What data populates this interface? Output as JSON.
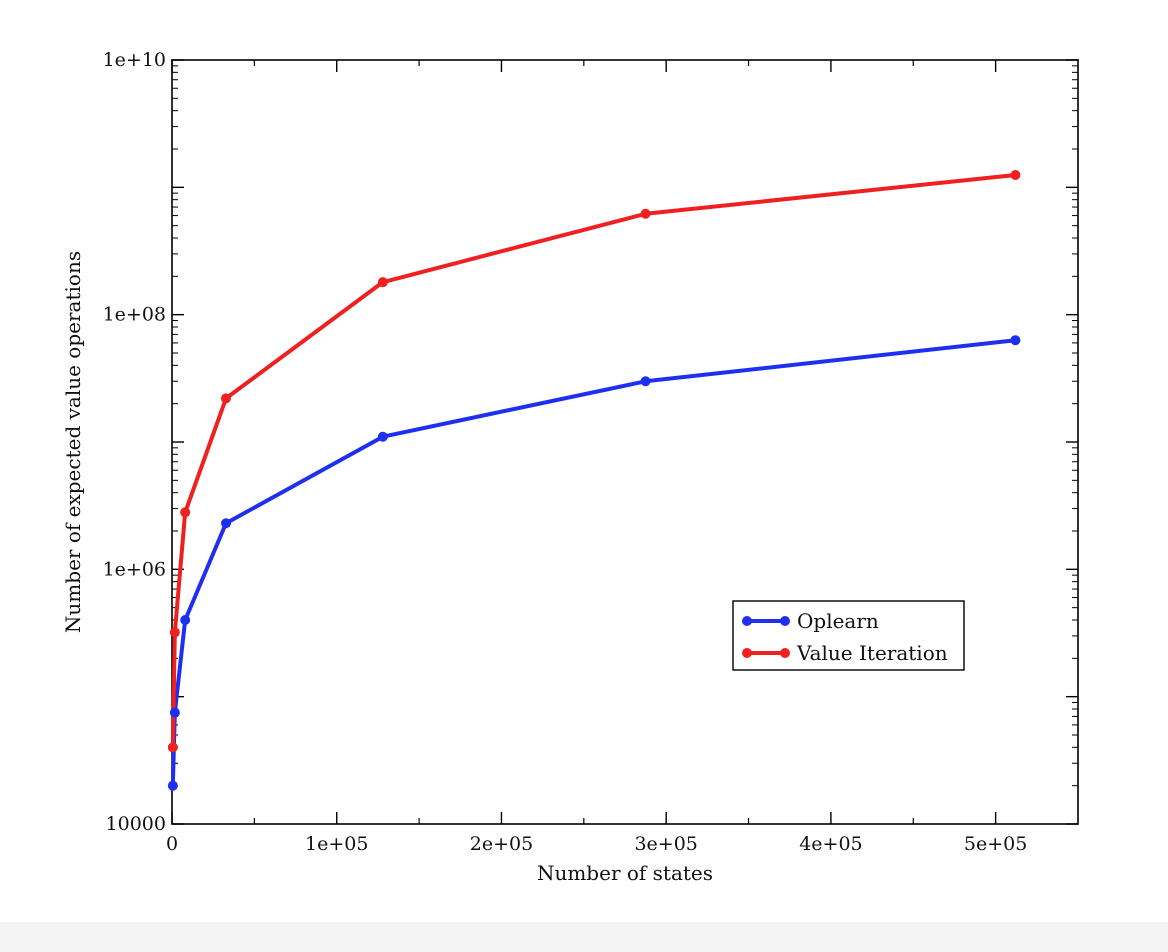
{
  "chart_data": {
    "type": "line",
    "title": "",
    "xlabel": "Number of states",
    "ylabel": "Number of expected value operations",
    "xlim": [
      0,
      550000
    ],
    "ylim": [
      10000,
      10000000000
    ],
    "yscale": "log",
    "x_ticks": [
      {
        "value": 0,
        "label": "0"
      },
      {
        "value": 100000,
        "label": "1e+05"
      },
      {
        "value": 200000,
        "label": "2e+05"
      },
      {
        "value": 300000,
        "label": "3e+05"
      },
      {
        "value": 400000,
        "label": "4e+05"
      },
      {
        "value": 500000,
        "label": "5e+05"
      }
    ],
    "y_ticks": [
      {
        "value": 10000,
        "label": "10000"
      },
      {
        "value": 1000000,
        "label": "1e+06"
      },
      {
        "value": 100000000,
        "label": "1e+08"
      },
      {
        "value": 10000000000,
        "label": "1e+10"
      }
    ],
    "grid": false,
    "legend_position": "lower-right",
    "series": [
      {
        "name": "Oplearn",
        "color": "#1f2ff0",
        "x": [
          512,
          1728,
          8000,
          32768,
          128000,
          287496,
          512000
        ],
        "y": [
          20000,
          75000,
          400000,
          2300000,
          11000000,
          30000000,
          63000000
        ]
      },
      {
        "name": "Value Iteration",
        "color": "#f02020",
        "x": [
          512,
          1728,
          8000,
          32768,
          128000,
          287496,
          512000
        ],
        "y": [
          40000,
          320000,
          2800000,
          22000000,
          180000000,
          620000000,
          1250000000
        ]
      }
    ]
  }
}
